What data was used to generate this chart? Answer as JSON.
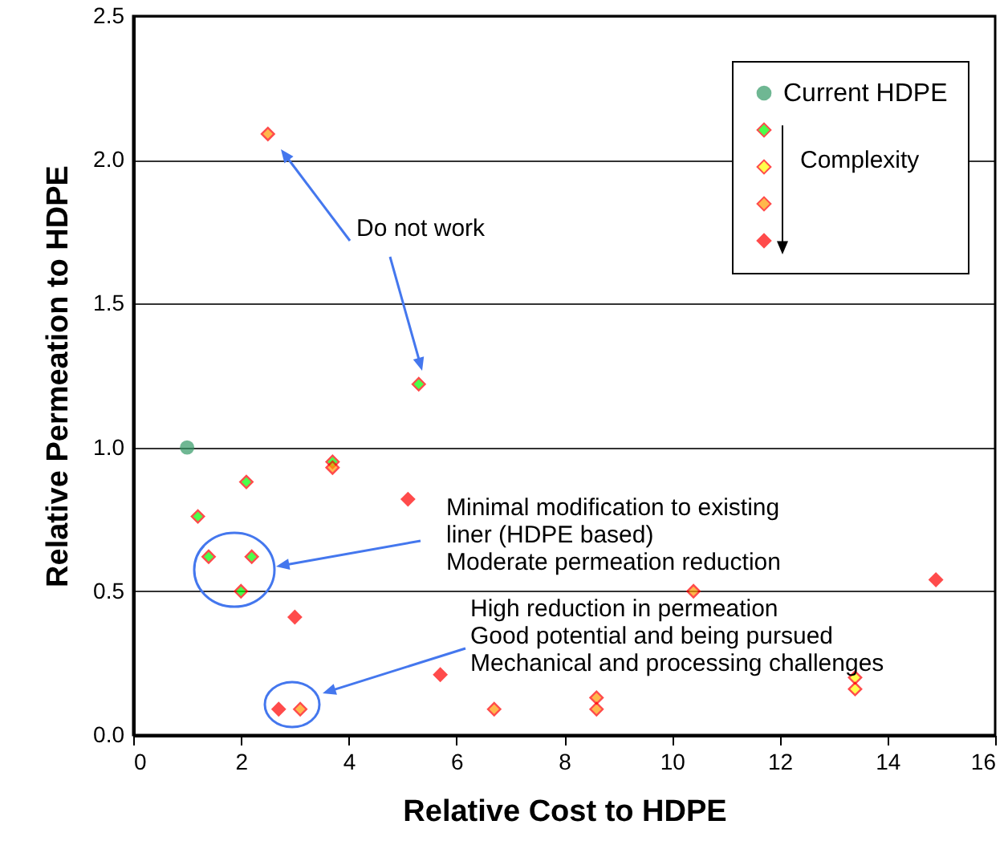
{
  "chart_data": {
    "type": "scatter",
    "xlabel": "Relative Cost to HDPE",
    "ylabel": "Relative Permeation to HDPE",
    "xlim": [
      0,
      16
    ],
    "xticks": [
      0,
      2,
      4,
      6,
      8,
      10,
      12,
      14,
      16
    ],
    "ylim": [
      0,
      2.5
    ],
    "yticks": [
      {
        "value": 0,
        "label": "0.0"
      },
      {
        "value": 0.5,
        "label": "0.5"
      },
      {
        "value": 1,
        "label": "1.0"
      },
      {
        "value": 1.5,
        "label": "1.5"
      },
      {
        "value": 2,
        "label": "2.0"
      },
      {
        "value": 2.5,
        "label": "2.5"
      }
    ],
    "grid": "y",
    "legend": "top right",
    "series": [
      {
        "name": "Current HDPE",
        "color": "#339966",
        "marker": "circle",
        "x": [
          1.0
        ],
        "values": [
          1.0
        ]
      },
      {
        "color": "#00ff00",
        "marker": "diamond",
        "x": [
          1.2,
          1.4,
          2.2,
          2.0,
          2.1,
          3.7,
          5.3
        ],
        "values": [
          0.76,
          0.62,
          0.62,
          0.5,
          0.88,
          0.95,
          1.22
        ]
      },
      {
        "color": "#ffff00",
        "marker": "diamond",
        "x": [
          13.4,
          13.4
        ],
        "values": [
          0.2,
          0.16
        ]
      },
      {
        "color": "#ff9900",
        "marker": "diamond",
        "x": [
          2.5,
          3.7,
          3.1,
          6.7,
          8.6,
          8.6,
          10.4
        ],
        "values": [
          2.09,
          0.93,
          0.09,
          0.09,
          0.13,
          0.09,
          0.5
        ]
      },
      {
        "color": "#ff0000",
        "marker": "diamond",
        "x": [
          2.7,
          3.0,
          5.1,
          5.7,
          14.9
        ],
        "values": [
          0.09,
          0.41,
          0.82,
          0.21,
          0.54
        ]
      }
    ],
    "annotations": [
      "Do not work",
      "Minimal modification to existing\nliner (HDPE based)\nModerate permeation reduction",
      "High reduction in permeation\nGood potential and being pursued\nMechanical and processing challenges",
      "Complexity"
    ]
  }
}
